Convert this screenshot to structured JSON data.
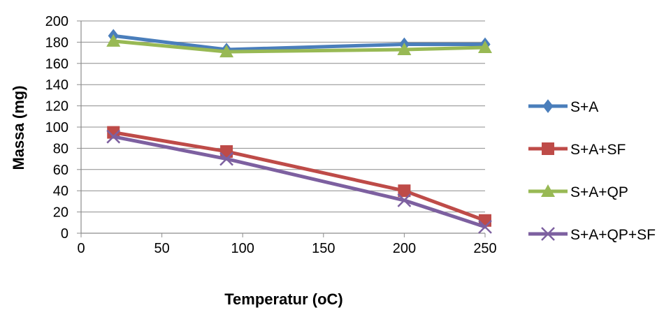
{
  "chart_data": {
    "type": "line",
    "title": "",
    "xlabel": "Temperatur (oC)",
    "ylabel": "Massa (mg)",
    "xlim": [
      0,
      250
    ],
    "ylim": [
      0,
      200
    ],
    "xticks": [
      0,
      50,
      100,
      150,
      200,
      250
    ],
    "yticks": [
      0,
      20,
      40,
      60,
      80,
      100,
      120,
      140,
      160,
      180,
      200
    ],
    "grid": "horizontal",
    "legend_position": "right",
    "x": [
      20,
      90,
      200,
      250
    ],
    "series": [
      {
        "name": "S+A",
        "values": [
          186,
          173,
          178,
          178
        ],
        "color": "#4a7ebb",
        "marker": "diamond"
      },
      {
        "name": "S+A+SF",
        "values": [
          95,
          77,
          40,
          12
        ],
        "color": "#be4b48",
        "marker": "square"
      },
      {
        "name": "S+A+QP",
        "values": [
          181,
          171,
          173,
          175
        ],
        "color": "#98b954",
        "marker": "triangle"
      },
      {
        "name": "S+A+QP+SF",
        "values": [
          91,
          70,
          31,
          6
        ],
        "color": "#7d60a0",
        "marker": "x"
      }
    ]
  }
}
